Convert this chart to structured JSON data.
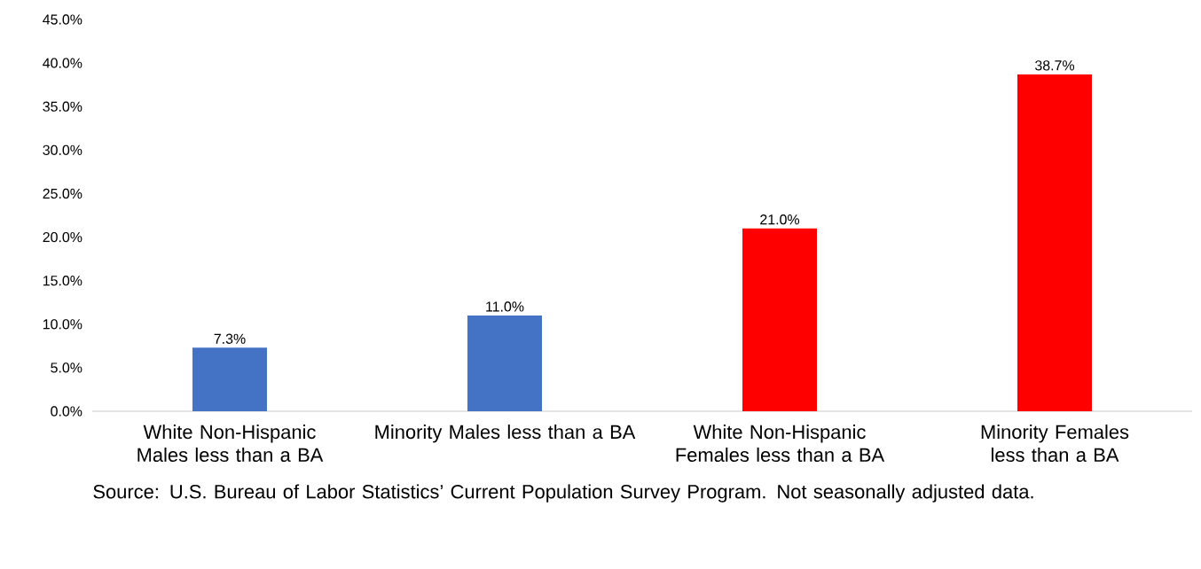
{
  "chart_data": {
    "type": "bar",
    "categories": [
      "White Non-Hispanic Males less than a BA",
      "Minority Males less than a BA",
      "White Non-Hispanic Females less than a BA",
      "Minority Females less than a BA"
    ],
    "values": [
      7.3,
      11.0,
      21.0,
      38.7
    ],
    "colors": [
      "#4472c4",
      "#4472c4",
      "#ff0000",
      "#ff0000"
    ],
    "value_labels": [
      "7.3%",
      "11.0%",
      "21.0%",
      "38.7%"
    ],
    "ylim": [
      0,
      45
    ],
    "yticks": [
      {
        "value": 0,
        "label": "0.0%"
      },
      {
        "value": 5,
        "label": "5.0%"
      },
      {
        "value": 10,
        "label": "10.0%"
      },
      {
        "value": 15,
        "label": "15.0%"
      },
      {
        "value": 20,
        "label": "20.0%"
      },
      {
        "value": 25,
        "label": "25.0%"
      },
      {
        "value": 30,
        "label": "30.0%"
      },
      {
        "value": 35,
        "label": "35.0%"
      },
      {
        "value": 40,
        "label": "40.0%"
      },
      {
        "value": 45,
        "label": "45.0%"
      }
    ],
    "annotations": [
      "Source: U.S. Bureau of Labor Statistics’ Current Population Survey Program. Not seasonally adjusted data."
    ]
  }
}
